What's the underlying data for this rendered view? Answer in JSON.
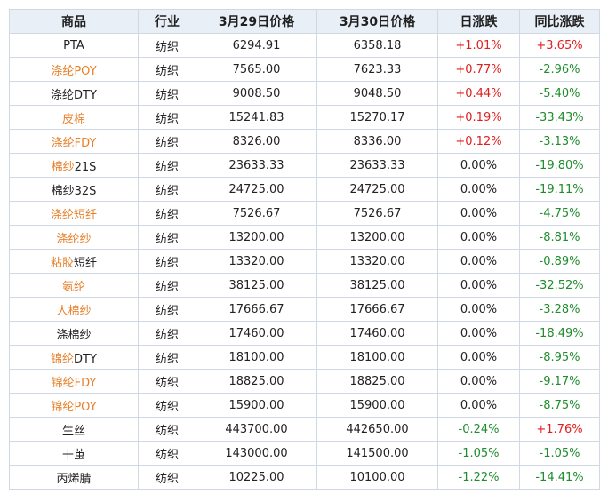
{
  "headers": [
    "商品",
    "行业",
    "3月29日价格",
    "3月30日价格",
    "日涨跌",
    "同比涨跌"
  ],
  "colors": {
    "up": "#e02020",
    "down": "#1e8c2c",
    "link": "#e8802b",
    "header_bg": "#e8eff6",
    "border": "#cfd8e3"
  },
  "rows": [
    {
      "name": [
        {
          "t": "PTA",
          "link": false
        }
      ],
      "industry": "纺织",
      "p1": "6294.91",
      "p2": "6358.18",
      "day": "+1.01%",
      "day_dir": "up",
      "yoy": "+3.65%",
      "yoy_dir": "up"
    },
    {
      "name": [
        {
          "t": "涤纶POY",
          "link": true
        }
      ],
      "industry": "纺织",
      "p1": "7565.00",
      "p2": "7623.33",
      "day": "+0.77%",
      "day_dir": "up",
      "yoy": "-2.96%",
      "yoy_dir": "down"
    },
    {
      "name": [
        {
          "t": "涤纶DTY",
          "link": false
        }
      ],
      "industry": "纺织",
      "p1": "9008.50",
      "p2": "9048.50",
      "day": "+0.44%",
      "day_dir": "up",
      "yoy": "-5.40%",
      "yoy_dir": "down"
    },
    {
      "name": [
        {
          "t": "皮棉",
          "link": true
        }
      ],
      "industry": "纺织",
      "p1": "15241.83",
      "p2": "15270.17",
      "day": "+0.19%",
      "day_dir": "up",
      "yoy": "-33.43%",
      "yoy_dir": "down"
    },
    {
      "name": [
        {
          "t": "涤纶FDY",
          "link": true
        }
      ],
      "industry": "纺织",
      "p1": "8326.00",
      "p2": "8336.00",
      "day": "+0.12%",
      "day_dir": "up",
      "yoy": "-3.13%",
      "yoy_dir": "down"
    },
    {
      "name": [
        {
          "t": "棉纱",
          "link": true
        },
        {
          "t": "21S",
          "link": false
        }
      ],
      "industry": "纺织",
      "p1": "23633.33",
      "p2": "23633.33",
      "day": "0.00%",
      "day_dir": "flat",
      "yoy": "-19.80%",
      "yoy_dir": "down"
    },
    {
      "name": [
        {
          "t": "棉纱32S",
          "link": false
        }
      ],
      "industry": "纺织",
      "p1": "24725.00",
      "p2": "24725.00",
      "day": "0.00%",
      "day_dir": "flat",
      "yoy": "-19.11%",
      "yoy_dir": "down"
    },
    {
      "name": [
        {
          "t": "涤纶短纤",
          "link": true
        }
      ],
      "industry": "纺织",
      "p1": "7526.67",
      "p2": "7526.67",
      "day": "0.00%",
      "day_dir": "flat",
      "yoy": "-4.75%",
      "yoy_dir": "down"
    },
    {
      "name": [
        {
          "t": "涤纶纱",
          "link": true
        }
      ],
      "industry": "纺织",
      "p1": "13200.00",
      "p2": "13200.00",
      "day": "0.00%",
      "day_dir": "flat",
      "yoy": "-8.81%",
      "yoy_dir": "down"
    },
    {
      "name": [
        {
          "t": "粘胶",
          "link": true
        },
        {
          "t": "短纤",
          "link": false
        }
      ],
      "industry": "纺织",
      "p1": "13320.00",
      "p2": "13320.00",
      "day": "0.00%",
      "day_dir": "flat",
      "yoy": "-0.89%",
      "yoy_dir": "down"
    },
    {
      "name": [
        {
          "t": "氨纶",
          "link": true
        }
      ],
      "industry": "纺织",
      "p1": "38125.00",
      "p2": "38125.00",
      "day": "0.00%",
      "day_dir": "flat",
      "yoy": "-32.52%",
      "yoy_dir": "down"
    },
    {
      "name": [
        {
          "t": "人棉纱",
          "link": true
        }
      ],
      "industry": "纺织",
      "p1": "17666.67",
      "p2": "17666.67",
      "day": "0.00%",
      "day_dir": "flat",
      "yoy": "-3.28%",
      "yoy_dir": "down"
    },
    {
      "name": [
        {
          "t": "涤棉纱",
          "link": false
        }
      ],
      "industry": "纺织",
      "p1": "17460.00",
      "p2": "17460.00",
      "day": "0.00%",
      "day_dir": "flat",
      "yoy": "-18.49%",
      "yoy_dir": "down"
    },
    {
      "name": [
        {
          "t": "锦纶",
          "link": true
        },
        {
          "t": "DTY",
          "link": false
        }
      ],
      "industry": "纺织",
      "p1": "18100.00",
      "p2": "18100.00",
      "day": "0.00%",
      "day_dir": "flat",
      "yoy": "-8.95%",
      "yoy_dir": "down"
    },
    {
      "name": [
        {
          "t": "锦纶FDY",
          "link": true
        }
      ],
      "industry": "纺织",
      "p1": "18825.00",
      "p2": "18825.00",
      "day": "0.00%",
      "day_dir": "flat",
      "yoy": "-9.17%",
      "yoy_dir": "down"
    },
    {
      "name": [
        {
          "t": "锦纶POY",
          "link": true
        }
      ],
      "industry": "纺织",
      "p1": "15900.00",
      "p2": "15900.00",
      "day": "0.00%",
      "day_dir": "flat",
      "yoy": "-8.75%",
      "yoy_dir": "down"
    },
    {
      "name": [
        {
          "t": "生丝",
          "link": false
        }
      ],
      "industry": "纺织",
      "p1": "443700.00",
      "p2": "442650.00",
      "day": "-0.24%",
      "day_dir": "down",
      "yoy": "+1.76%",
      "yoy_dir": "up"
    },
    {
      "name": [
        {
          "t": "干茧",
          "link": false
        }
      ],
      "industry": "纺织",
      "p1": "143000.00",
      "p2": "141500.00",
      "day": "-1.05%",
      "day_dir": "down",
      "yoy": "-1.05%",
      "yoy_dir": "down"
    },
    {
      "name": [
        {
          "t": "丙烯腈",
          "link": false
        }
      ],
      "industry": "纺织",
      "p1": "10225.00",
      "p2": "10100.00",
      "day": "-1.22%",
      "day_dir": "down",
      "yoy": "-14.41%",
      "yoy_dir": "down"
    }
  ]
}
